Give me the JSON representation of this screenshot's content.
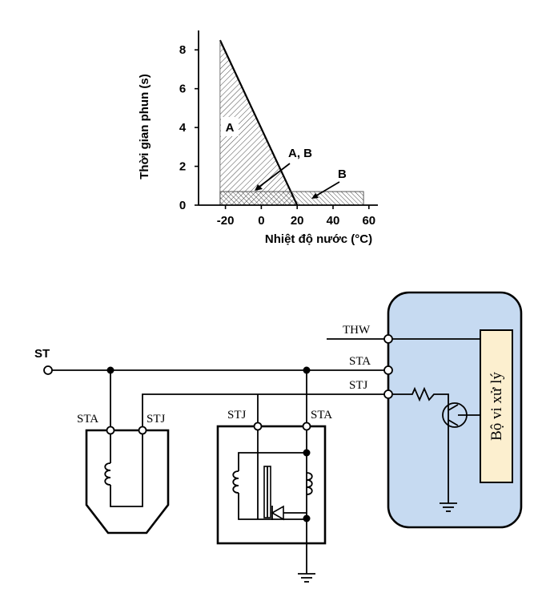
{
  "chart_data": {
    "type": "area",
    "ylabel": "Thời gian phun (s)",
    "xlabel": "Nhiệt độ nước (°C)",
    "x_ticks": [
      "-20",
      "0",
      "20",
      "40",
      "60"
    ],
    "y_ticks": [
      "0",
      "2",
      "4",
      "6",
      "8"
    ],
    "xlim": [
      -35,
      65
    ],
    "ylim": [
      0,
      9
    ],
    "series": [
      {
        "name": "A",
        "points": [
          [
            -23,
            8.5
          ],
          [
            20,
            0
          ]
        ]
      },
      {
        "name": "B",
        "points": [
          [
            -23,
            0.7
          ],
          [
            57,
            0.7
          ]
        ]
      }
    ],
    "annotations": [
      "A",
      "A, B",
      "B"
    ]
  },
  "circuit": {
    "st": "ST",
    "left_sta": "STA",
    "left_stj": "STJ",
    "mid_stj": "STJ",
    "mid_sta": "STA",
    "ecu_thw": "THW",
    "ecu_sta": "STA",
    "ecu_stj": "STJ",
    "processor": "Bộ vi xử lý"
  },
  "colors": {
    "ecu_fill": "#c6daf1",
    "processor_fill": "#fcefcf"
  }
}
